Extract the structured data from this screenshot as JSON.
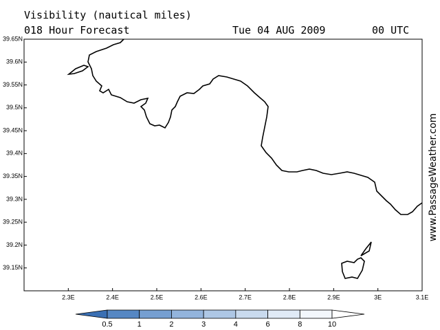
{
  "header": {
    "title": "Visibility (nautical miles)",
    "forecast": "018 Hour Forecast",
    "date": "Tue 04 AUG 2009",
    "time": "00 UTC"
  },
  "map": {
    "xlim": [
      2.2,
      3.1
    ],
    "ylim": [
      39.1,
      39.65
    ],
    "xticks": [
      {
        "value": 2.3,
        "label": "2.3E"
      },
      {
        "value": 2.4,
        "label": "2.4E"
      },
      {
        "value": 2.5,
        "label": "2.5E"
      },
      {
        "value": 2.6,
        "label": "2.6E"
      },
      {
        "value": 2.7,
        "label": "2.7E"
      },
      {
        "value": 2.8,
        "label": "2.8E"
      },
      {
        "value": 2.9,
        "label": "2.9E"
      },
      {
        "value": 3,
        "label": "3E"
      },
      {
        "value": 3.1,
        "label": "3.1E"
      }
    ],
    "yticks": [
      {
        "value": 39.15,
        "label": "39.15N"
      },
      {
        "value": 39.2,
        "label": "39.2N"
      },
      {
        "value": 39.25,
        "label": "39.25N"
      },
      {
        "value": 39.3,
        "label": "39.3N"
      },
      {
        "value": 39.35,
        "label": "39.35N"
      },
      {
        "value": 39.4,
        "label": "39.4N"
      },
      {
        "value": 39.45,
        "label": "39.45N"
      },
      {
        "value": 39.5,
        "label": "39.5N"
      },
      {
        "value": 39.55,
        "label": "39.55N"
      },
      {
        "value": 39.6,
        "label": "39.6N"
      },
      {
        "value": 39.65,
        "label": "39.65N"
      }
    ]
  },
  "colorbar": {
    "levels": [
      0.5,
      1,
      2,
      3,
      4,
      6,
      8,
      10
    ],
    "colors": [
      "#3a6fb3",
      "#5687c3",
      "#769fd1",
      "#93b4dc",
      "#aec7e5",
      "#c9daee",
      "#e0eaf6",
      "#f3f7fc",
      "#ffffff"
    ]
  },
  "watermark": "www.PassageWeather.com"
}
